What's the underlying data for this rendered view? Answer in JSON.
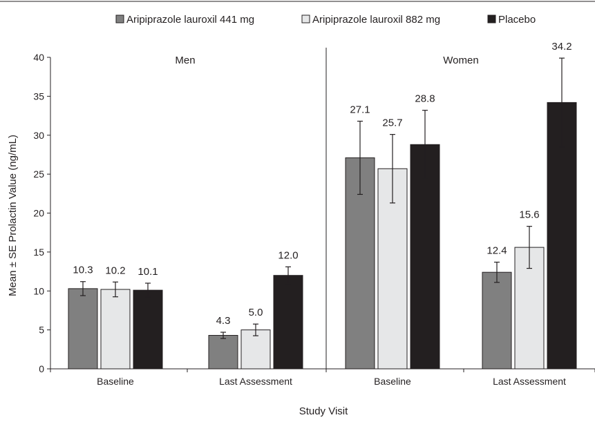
{
  "chart_data": {
    "type": "bar",
    "title": "",
    "xlabel": "Study Visit",
    "ylabel": "Mean ± SE Prolactin Value (ng/mL)",
    "ylim": [
      0,
      40
    ],
    "yticks": [
      0,
      5,
      10,
      15,
      20,
      25,
      30,
      35,
      40
    ],
    "grid": false,
    "legend_position": "top",
    "panels": [
      "Men",
      "Women"
    ],
    "categories": [
      "Baseline",
      "Last Assessment",
      "Baseline",
      "Last Assessment"
    ],
    "series": [
      {
        "name": "Aripiprazole lauroxil 441 mg",
        "color": "#808080",
        "values": [
          10.3,
          4.3,
          27.1,
          12.4
        ],
        "labels": [
          "10.3",
          "4.3",
          "27.1",
          "12.4"
        ],
        "se": [
          0.9,
          0.4,
          4.7,
          1.3
        ]
      },
      {
        "name": "Aripiprazole lauroxil 882 mg",
        "color": "#e6e7e8",
        "values": [
          10.2,
          5.0,
          25.7,
          15.6
        ],
        "labels": [
          "10.2",
          "5.0",
          "25.7",
          "15.6"
        ],
        "se": [
          0.95,
          0.75,
          4.4,
          2.7
        ]
      },
      {
        "name": "Placebo",
        "color": "#231f20",
        "values": [
          10.1,
          12.0,
          28.8,
          34.2
        ],
        "labels": [
          "10.1",
          "12.0",
          "28.8",
          "34.2"
        ],
        "se": [
          0.9,
          1.1,
          4.4,
          5.7
        ]
      }
    ]
  }
}
